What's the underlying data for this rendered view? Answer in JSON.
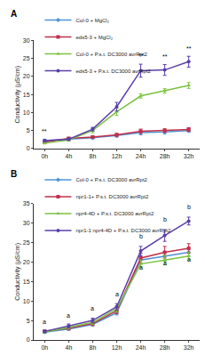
{
  "chart_data": [
    {
      "type": "line",
      "title": "A",
      "categories": [
        "0h",
        "4h",
        "8h",
        "12h",
        "24h",
        "28h",
        "32h"
      ],
      "y_label": "Conductivity (µS/cm)",
      "ylim": [
        0,
        30
      ],
      "yticks": [
        0,
        5,
        10,
        15,
        20,
        25,
        30
      ],
      "grid": false,
      "legend": "top left",
      "series": [
        {
          "name": "Col-0 + MgCl₂",
          "color": "#4f94d4",
          "marker": "diamond",
          "values": [
            2.2,
            2.6,
            3.0,
            3.6,
            4.4,
            4.6,
            5.0
          ],
          "errors": [
            0.3,
            0.3,
            0.3,
            0.4,
            0.6,
            0.5,
            0.5
          ]
        },
        {
          "name": "eds5-3 + MgCl₂",
          "color": "#c0304a",
          "marker": "square",
          "values": [
            1.8,
            2.8,
            3.2,
            3.8,
            4.8,
            5.0,
            5.3
          ],
          "errors": [
            0.3,
            0.3,
            0.3,
            0.4,
            0.6,
            0.5,
            0.5
          ]
        },
        {
          "name": "Col-0 + P.s.t. DC3000 avrRpt2",
          "color": "#7cc242",
          "marker": "triangle-up",
          "values": [
            1.5,
            2.4,
            5.0,
            10.2,
            14.6,
            16.0,
            17.5
          ],
          "errors": [
            0.2,
            0.3,
            0.6,
            1.0,
            0.6,
            0.6,
            0.8
          ]
        },
        {
          "name": "eds5-3 + P.s.t. DC3000 avrRpt2",
          "color": "#5a3fa8",
          "marker": "circle",
          "values": [
            2.2,
            2.6,
            5.4,
            11.6,
            21.6,
            21.8,
            24.1
          ],
          "errors": [
            0.3,
            0.3,
            0.5,
            1.2,
            1.8,
            1.5,
            1.5
          ]
        }
      ],
      "annotations": [
        {
          "x": "0h",
          "y": 3.4,
          "text": "**"
        },
        {
          "x": "24h",
          "y": 24.3,
          "text": "**"
        },
        {
          "x": "28h",
          "y": 24.2,
          "text": "**"
        },
        {
          "x": "32h",
          "y": 26.5,
          "text": "**"
        }
      ]
    },
    {
      "type": "line",
      "title": "B",
      "categories": [
        "0h",
        "4h",
        "8h",
        "12h",
        "24h",
        "28h",
        "32h"
      ],
      "y_label": "Conductivity (µS/cm)",
      "ylim": [
        0,
        35
      ],
      "yticks": [
        0,
        5,
        10,
        15,
        20,
        25,
        30,
        35
      ],
      "grid": false,
      "legend": "top left",
      "series": [
        {
          "name": "Col-0 + P.s.t. DC3000 avrRpt2",
          "color": "#4f94d4",
          "marker": "diamond",
          "values": [
            2.0,
            2.8,
            4.0,
            7.0,
            20.5,
            21.5,
            22.5
          ],
          "errors": [
            0.2,
            0.3,
            0.4,
            0.6,
            1.0,
            1.2,
            1.0
          ]
        },
        {
          "name": "npr1-1+ P.s.t. DC3000 avrRpt2",
          "color": "#c0304a",
          "marker": "square",
          "values": [
            2.2,
            3.0,
            4.2,
            7.5,
            21.0,
            22.5,
            23.5
          ],
          "errors": [
            0.3,
            0.4,
            0.5,
            0.8,
            1.2,
            1.5,
            1.2
          ]
        },
        {
          "name": "npr4-4D + P.s.t. DC3000 avrRpt2",
          "color": "#7cc242",
          "marker": "triangle-up",
          "values": [
            2.0,
            3.2,
            4.5,
            8.0,
            19.5,
            20.5,
            21.5
          ],
          "errors": [
            0.2,
            0.4,
            0.5,
            0.8,
            1.0,
            1.2,
            1.0
          ]
        },
        {
          "name": "npr1-1 npr4-4D + P.s.t. DC3000 avrRpt2",
          "color": "#5a3fa8",
          "marker": "circle",
          "values": [
            2.2,
            3.6,
            5.0,
            8.5,
            22.8,
            26.8,
            30.5
          ],
          "errors": [
            0.3,
            0.5,
            0.6,
            0.8,
            1.2,
            1.5,
            1.0
          ]
        }
      ],
      "annotations": [
        {
          "x": "0h",
          "y": 3.4,
          "text": "a"
        },
        {
          "x": "4h",
          "y": 5.0,
          "text": "a"
        },
        {
          "x": "8h",
          "y": 6.8,
          "text": "a"
        },
        {
          "x": "12h",
          "y": 10.5,
          "text": "a"
        },
        {
          "x": "24h",
          "y": 25.3,
          "text": "b"
        },
        {
          "x": "24h",
          "y": 17.3,
          "text": "a"
        },
        {
          "x": "28h",
          "y": 29.6,
          "text": "b"
        },
        {
          "x": "28h",
          "y": 18.5,
          "text": "a"
        },
        {
          "x": "32h",
          "y": 32.8,
          "text": "b"
        },
        {
          "x": "32h",
          "y": 19.5,
          "text": "a"
        }
      ]
    }
  ]
}
